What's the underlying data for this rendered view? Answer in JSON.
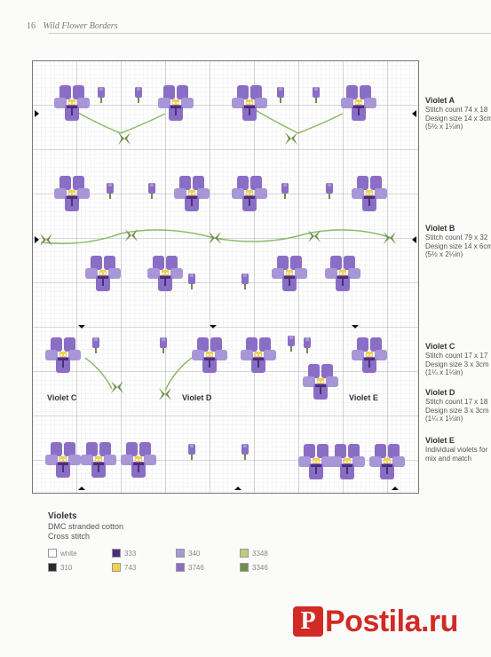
{
  "header": {
    "page_number": "16",
    "title": "Wild Flower Borders"
  },
  "labels": [
    {
      "title": "Violet A",
      "lines": [
        "Stitch count 74 x 18",
        "Design size 14 x 3cm",
        "(5½ x 1¼in)"
      ]
    },
    {
      "title": "Violet B",
      "lines": [
        "Stitch count 79 x 32",
        "Design size 14 x 6cm",
        "(5½ x 2¼in)"
      ]
    },
    {
      "title": "Violet C",
      "lines": [
        "Stitch count 17 x 17",
        "Design size 3 x 3cm",
        "(1¼ x 1¼in)"
      ]
    },
    {
      "title": "Violet D",
      "lines": [
        "Stitch count 17 x 18",
        "Design size 3 x 3cm",
        "(1¼ x 1¼in)"
      ]
    },
    {
      "title": "Violet E",
      "lines": [
        "Individual violets for",
        "mix and match"
      ]
    }
  ],
  "inchart": {
    "c": "Violet C",
    "d": "Violet D",
    "e": "Violet E"
  },
  "key": {
    "title": "Violets",
    "thread": "DMC stranded cotton",
    "stitch": "Cross stitch",
    "items": [
      {
        "code": "white",
        "color": "#ffffff"
      },
      {
        "code": "310",
        "color": "#2a2a2a"
      },
      {
        "code": "333",
        "color": "#4b2f7a"
      },
      {
        "code": "743",
        "color": "#f2cf52"
      },
      {
        "code": "340",
        "color": "#a896d6"
      },
      {
        "code": "3746",
        "color": "#8a6ec6"
      },
      {
        "code": "3348",
        "color": "#b9cf7c"
      },
      {
        "code": "3346",
        "color": "#6f8f4a"
      }
    ]
  },
  "watermark": {
    "initial": "P",
    "text": "Postila.ru"
  }
}
